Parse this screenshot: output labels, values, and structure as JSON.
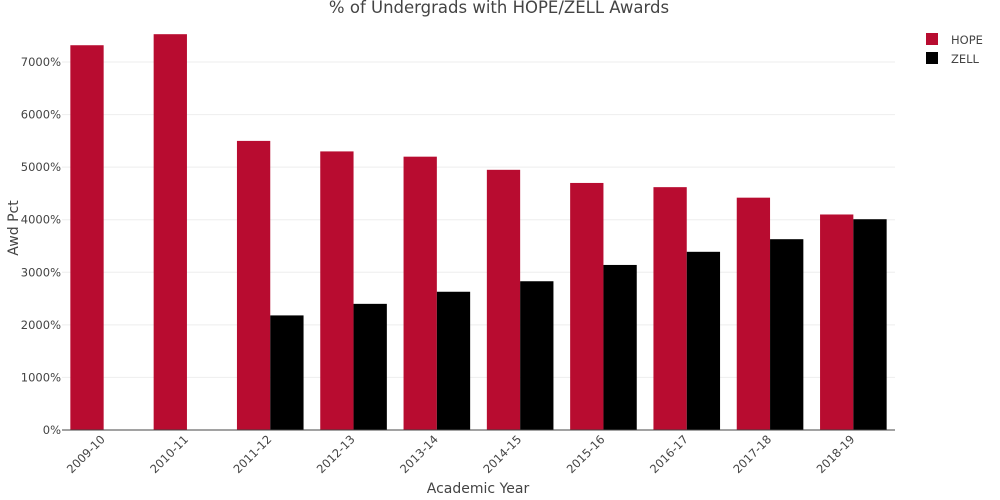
{
  "chart_data": {
    "type": "bar",
    "title": "% of Undergrads with HOPE/ZELL Awards",
    "xlabel": "Academic Year",
    "ylabel": "Awd Pct",
    "categories": [
      "2009-10",
      "2010-11",
      "2011-12",
      "2012-13",
      "2013-14",
      "2014-15",
      "2015-16",
      "2016-17",
      "2017-18",
      "2018-19"
    ],
    "series": [
      {
        "name": "HOPE",
        "color": "#b80c30",
        "values": [
          7320,
          7530,
          5500,
          5300,
          5200,
          4950,
          4700,
          4620,
          4420,
          4100
        ]
      },
      {
        "name": "ZELL",
        "color": "#000000",
        "values": [
          null,
          null,
          2180,
          2400,
          2630,
          2830,
          3140,
          3390,
          3630,
          4010
        ]
      }
    ],
    "ylim": [
      0,
      7800
    ],
    "yticks": [
      0,
      1000,
      2000,
      3000,
      4000,
      5000,
      6000,
      7000
    ],
    "ytick_labels": [
      "0%",
      "1000%",
      "2000%",
      "3000%",
      "4000%",
      "5000%",
      "6000%",
      "7000%"
    ],
    "grid": true,
    "legend_position": "top-right"
  }
}
